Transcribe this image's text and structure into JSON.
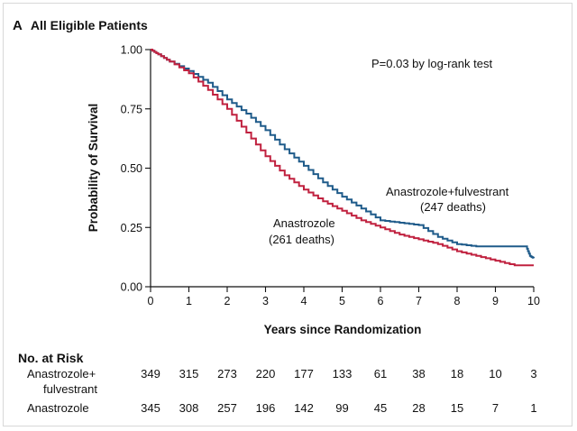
{
  "panel": {
    "letter": "A",
    "title": "All Eligible Patients"
  },
  "chart_data": {
    "type": "line",
    "title": "All Eligible Patients",
    "xlabel": "Years since Randomization",
    "ylabel": "Probability of Survival",
    "xlim": [
      0,
      10
    ],
    "ylim": [
      0,
      1
    ],
    "xticks": [
      "0",
      "1",
      "2",
      "3",
      "4",
      "5",
      "6",
      "7",
      "8",
      "9",
      "10"
    ],
    "yticks": [
      "0.00",
      "0.25",
      "0.50",
      "0.75",
      "1.00"
    ],
    "annotation": "P=0.03 by log-rank test",
    "series": [
      {
        "name": "Anastrozole+fulvestrant",
        "deaths_label": "(247 deaths)",
        "color": "#1f5b8a",
        "x": [
          0,
          0.2,
          0.5,
          1.0,
          1.5,
          2.0,
          2.5,
          3.0,
          3.5,
          4.0,
          4.5,
          5.0,
          5.5,
          6.0,
          6.5,
          7.0,
          7.5,
          8.0,
          8.5,
          9.0,
          9.5,
          9.8,
          9.9,
          10.0
        ],
        "y": [
          1.0,
          0.98,
          0.95,
          0.91,
          0.86,
          0.79,
          0.73,
          0.66,
          0.58,
          0.51,
          0.44,
          0.38,
          0.33,
          0.28,
          0.27,
          0.26,
          0.21,
          0.18,
          0.17,
          0.17,
          0.17,
          0.17,
          0.13,
          0.12
        ]
      },
      {
        "name": "Anastrozole",
        "deaths_label": "(261 deaths)",
        "color": "#c0213f",
        "x": [
          0,
          0.2,
          0.5,
          1.0,
          1.5,
          2.0,
          2.5,
          3.0,
          3.5,
          4.0,
          4.5,
          5.0,
          5.5,
          6.0,
          6.5,
          7.0,
          7.5,
          8.0,
          8.5,
          9.0,
          9.5,
          10.0
        ],
        "y": [
          1.0,
          0.98,
          0.95,
          0.9,
          0.83,
          0.75,
          0.65,
          0.55,
          0.47,
          0.41,
          0.36,
          0.32,
          0.28,
          0.25,
          0.22,
          0.2,
          0.18,
          0.15,
          0.13,
          0.11,
          0.09,
          0.09
        ]
      }
    ]
  },
  "risk_table": {
    "title": "No. at Risk",
    "rows": [
      {
        "label_line1": "Anastrozole+",
        "label_line2": "fulvestrant",
        "values": [
          "349",
          "315",
          "273",
          "220",
          "177",
          "133",
          "61",
          "38",
          "18",
          "10",
          "3"
        ]
      },
      {
        "label_line1": "Anastrozole",
        "label_line2": "",
        "values": [
          "345",
          "308",
          "257",
          "196",
          "142",
          "99",
          "45",
          "28",
          "15",
          "7",
          "1"
        ]
      }
    ]
  }
}
